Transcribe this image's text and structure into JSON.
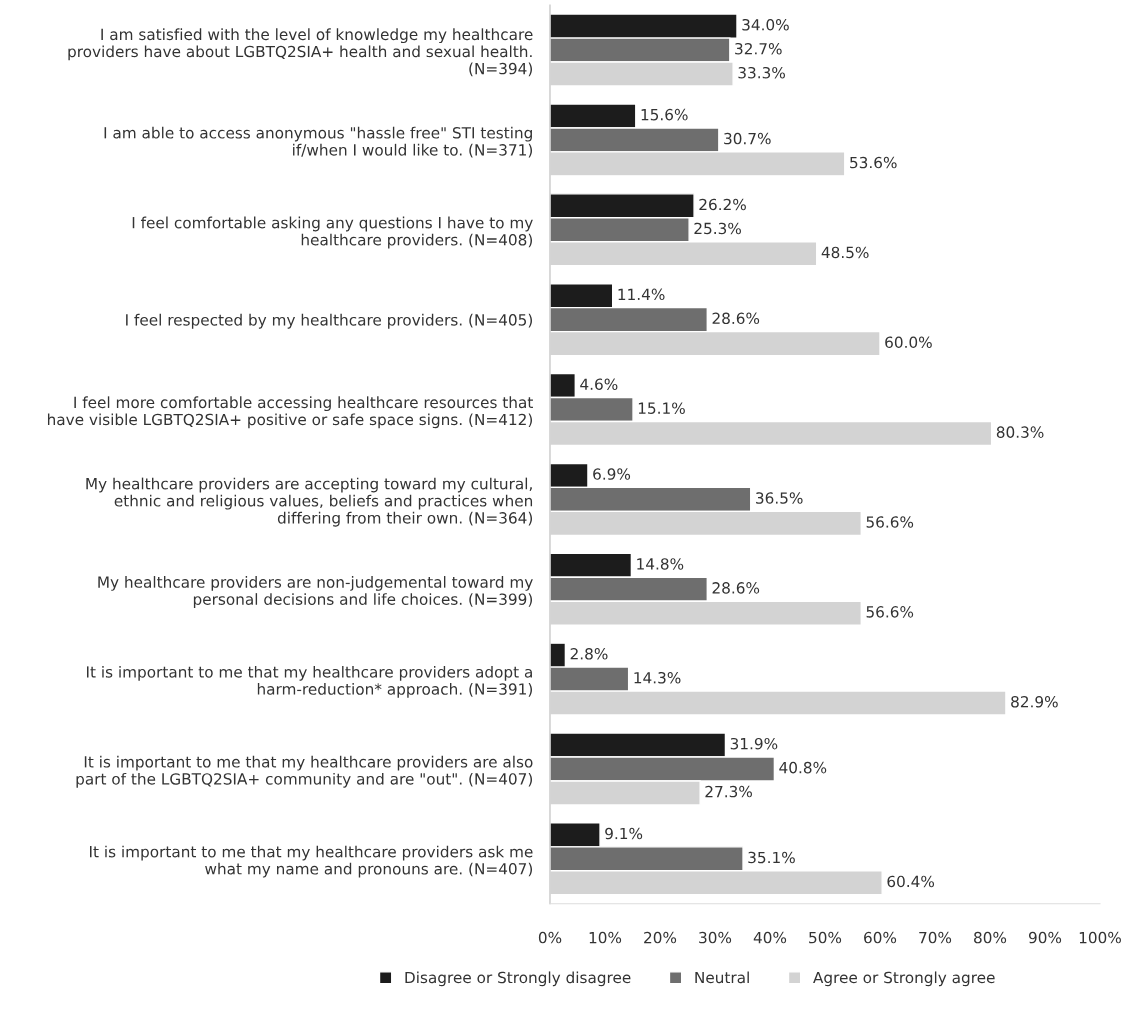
{
  "chart_data": {
    "type": "bar",
    "orientation": "horizontal",
    "categories": [
      "I am satisfied with the level of knowledge my healthcare\nproviders have about LGBTQ2SIA+ health and sexual health.\n(N=394)",
      "I am able to access anonymous \"hassle free\" STI testing\nif/when I would like to. (N=371)",
      "I feel comfortable asking any questions I have to my\nhealthcare providers. (N=408)",
      "I feel respected by my healthcare providers. (N=405)",
      "I feel more comfortable accessing healthcare resources that\nhave visible LGBTQ2SIA+ positive or safe space signs. (N=412)",
      "My healthcare providers are accepting toward my cultural,\nethnic and religious values, beliefs and practices when\ndiffering from their own. (N=364)",
      "My healthcare providers are non-judgemental toward my\npersonal decisions and life choices. (N=399)",
      "It is important to me that my healthcare providers adopt a\nharm-reduction* approach. (N=391)",
      "It is important to me that my healthcare providers are also\npart of the LGBTQ2SIA+ community and are \"out\". (N=407)",
      "It is important to me that my healthcare providers ask me\nwhat my name and pronouns are. (N=407)"
    ],
    "series": [
      {
        "name": "Disagree or Strongly disagree",
        "color": "#1c1c1c",
        "values": [
          34.0,
          15.6,
          26.2,
          11.4,
          4.6,
          6.9,
          14.8,
          2.8,
          31.9,
          9.1
        ],
        "value_labels": [
          "34.0%",
          "15.6%",
          "26.2%",
          "11.4%",
          "4.6%",
          "6.9%",
          "14.8%",
          "2.8%",
          "31.9%",
          "9.1%"
        ]
      },
      {
        "name": "Neutral",
        "color": "#6e6e6e",
        "values": [
          32.7,
          30.7,
          25.3,
          28.6,
          15.1,
          36.5,
          28.6,
          14.3,
          40.8,
          35.1
        ],
        "value_labels": [
          "32.7%",
          "30.7%",
          "25.3%",
          "28.6%",
          "15.1%",
          "36.5%",
          "28.6%",
          "14.3%",
          "40.8%",
          "35.1%"
        ]
      },
      {
        "name": "Agree or Strongly agree",
        "color": "#d3d3d3",
        "values": [
          33.3,
          53.6,
          48.5,
          60.0,
          80.3,
          56.6,
          56.6,
          82.9,
          27.3,
          60.4
        ],
        "value_labels": [
          "33.3%",
          "53.6%",
          "48.5%",
          "60.0%",
          "80.3%",
          "56.6%",
          "56.6%",
          "82.9%",
          "27.3%",
          "60.4%"
        ]
      }
    ],
    "xlim": [
      0,
      100
    ],
    "xticks": [
      {
        "value": 0,
        "label": "0%"
      },
      {
        "value": 10,
        "label": "10%"
      },
      {
        "value": 20,
        "label": "20%"
      },
      {
        "value": 30,
        "label": "30%"
      },
      {
        "value": 40,
        "label": "40%"
      },
      {
        "value": 50,
        "label": "50%"
      },
      {
        "value": 60,
        "label": "60%"
      },
      {
        "value": 70,
        "label": "70%"
      },
      {
        "value": 80,
        "label": "80%"
      },
      {
        "value": 90,
        "label": "90%"
      },
      {
        "value": 100,
        "label": "100%"
      }
    ],
    "grid": false,
    "legend": "bottom"
  }
}
